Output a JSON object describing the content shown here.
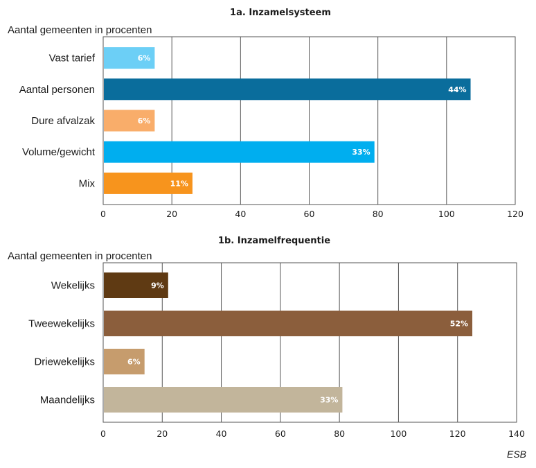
{
  "chart_data": [
    {
      "type": "bar",
      "orientation": "horizontal",
      "title": "1a. Inzamelsysteem",
      "subtitle": "Aantal gemeenten in procenten",
      "categories": [
        "Vast tarief",
        "Aantal personen",
        "Dure afvalzak",
        "Volume/gewicht",
        "Mix"
      ],
      "values": [
        15,
        107,
        15,
        79,
        26
      ],
      "data_labels": [
        "6%",
        "44%",
        "6%",
        "33%",
        "11%"
      ],
      "colors": [
        "#6ccff6",
        "#0a6d9c",
        "#f9ad6a",
        "#00aeef",
        "#f7941d"
      ],
      "xlim": [
        0,
        120
      ],
      "xticks": [
        0,
        20,
        40,
        60,
        80,
        100,
        120
      ],
      "grid": true
    },
    {
      "type": "bar",
      "orientation": "horizontal",
      "title": "1b. Inzamelfrequentie",
      "subtitle": "Aantal gemeenten in procenten",
      "categories": [
        "Wekelijks",
        "Tweewekelijks",
        "Driewekelijks",
        "Maandelijks"
      ],
      "values": [
        22,
        125,
        14,
        81
      ],
      "data_labels": [
        "9%",
        "52%",
        "6%",
        "33%"
      ],
      "colors": [
        "#5f3a13",
        "#8b5e3c",
        "#c69c6d",
        "#c2b59b"
      ],
      "xlim": [
        0,
        140
      ],
      "xticks": [
        0,
        20,
        40,
        60,
        80,
        100,
        120,
        140
      ],
      "grid": true
    }
  ],
  "source": "ESB"
}
